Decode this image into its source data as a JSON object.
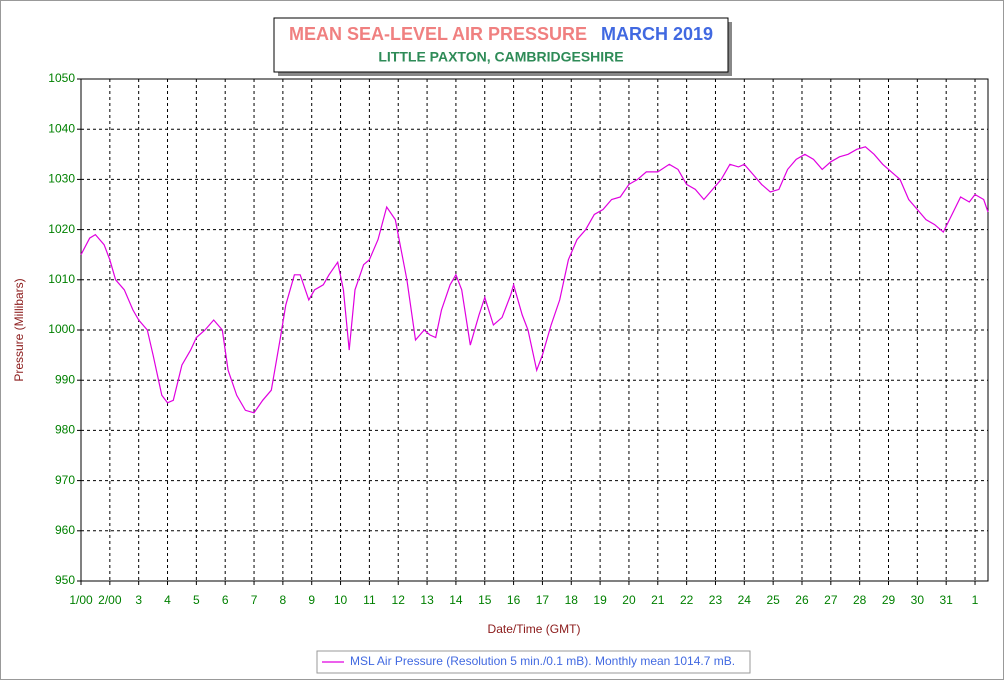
{
  "chart_data": {
    "type": "line",
    "title": "MEAN SEA-LEVEL AIR PRESSURE",
    "title_period": "MARCH 2019",
    "subtitle": "LITTLE PAXTON, CAMBRIDGESHIRE",
    "x_label": "Date/Time (GMT)",
    "y_label": "Pressure (Millibars)",
    "x": [
      1.0,
      1.3,
      1.5,
      1.8,
      2.0,
      2.2,
      2.5,
      2.8,
      3.0,
      3.3,
      3.5,
      3.8,
      4.0,
      4.2,
      4.5,
      4.8,
      5.0,
      5.3,
      5.6,
      5.9,
      6.1,
      6.4,
      6.7,
      7.0,
      7.3,
      7.6,
      7.9,
      8.1,
      8.4,
      8.6,
      8.9,
      9.1,
      9.4,
      9.6,
      9.9,
      10.1,
      10.3,
      10.5,
      10.8,
      11.0,
      11.3,
      11.6,
      11.9,
      12.1,
      12.3,
      12.6,
      12.9,
      13.1,
      13.3,
      13.5,
      13.8,
      14.0,
      14.2,
      14.5,
      14.8,
      15.0,
      15.3,
      15.6,
      15.9,
      16.0,
      16.3,
      16.5,
      16.8,
      17.0,
      17.3,
      17.6,
      17.9,
      18.2,
      18.5,
      18.8,
      19.1,
      19.4,
      19.7,
      20.0,
      20.3,
      20.6,
      21.0,
      21.4,
      21.7,
      22.0,
      22.3,
      22.6,
      22.9,
      23.2,
      23.5,
      23.8,
      24.0,
      24.3,
      24.6,
      24.9,
      25.2,
      25.5,
      25.8,
      26.1,
      26.4,
      26.7,
      27.0,
      27.3,
      27.6,
      27.9,
      28.2,
      28.5,
      28.8,
      29.1,
      29.4,
      29.7,
      30.0,
      30.3,
      30.6,
      30.9,
      31.2,
      31.5,
      31.8,
      32.0,
      32.3,
      32.45
    ],
    "series": [
      {
        "name": "MSL Air Pressure (Resolution 5 min./0.1 mB). Monthly mean 1014.7 mB.",
        "color": "#e000e0",
        "values": [
          1015,
          1018.3,
          1019,
          1017,
          1014,
          1010,
          1008,
          1004,
          1002,
          1000,
          995,
          987,
          985.5,
          986,
          993,
          996,
          998.5,
          1000,
          1002,
          1000,
          992,
          987,
          984,
          983.5,
          986,
          988,
          998,
          1005,
          1011,
          1011,
          1006,
          1008,
          1009,
          1011,
          1013.5,
          1008,
          996,
          1008,
          1013,
          1014,
          1018,
          1024.5,
          1022,
          1016,
          1010,
          998,
          1000,
          999,
          998.5,
          1004,
          1009,
          1011,
          1008,
          997,
          1003,
          1006.5,
          1001,
          1002.5,
          1007,
          1009,
          1003,
          1000,
          992,
          995,
          1001,
          1006,
          1014,
          1018,
          1020,
          1023,
          1024,
          1026,
          1026.5,
          1029,
          1030,
          1031.5,
          1031.5,
          1033,
          1032,
          1029,
          1028,
          1026,
          1028,
          1030,
          1033,
          1032.5,
          1033,
          1031,
          1029,
          1027.5,
          1028,
          1032,
          1034,
          1035,
          1034,
          1032,
          1033.5,
          1034.5,
          1035,
          1036,
          1036.5,
          1035,
          1033,
          1031.5,
          1030,
          1026,
          1024,
          1022,
          1021,
          1019.5,
          1023,
          1026.5,
          1025.5,
          1027,
          1026,
          1023.5
        ]
      }
    ],
    "xlim": [
      1,
      32.45
    ],
    "ylim": [
      950,
      1050
    ],
    "xticks": [
      {
        "value": 1,
        "label": "1/00"
      },
      {
        "value": 2,
        "label": "2/00"
      },
      3,
      4,
      5,
      6,
      7,
      8,
      9,
      10,
      11,
      12,
      13,
      14,
      15,
      16,
      17,
      18,
      19,
      20,
      21,
      22,
      23,
      24,
      25,
      26,
      27,
      28,
      29,
      30,
      31,
      {
        "value": 32,
        "label": "1"
      }
    ],
    "yticks": [
      950,
      960,
      970,
      980,
      990,
      1000,
      1010,
      1020,
      1030,
      1040,
      1050
    ],
    "grid": true
  }
}
